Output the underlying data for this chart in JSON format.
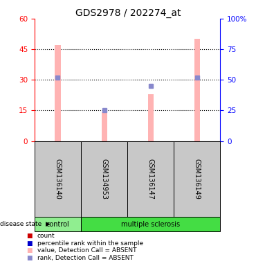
{
  "title": "GDS2978 / 202274_at",
  "samples": [
    "GSM136140",
    "GSM134953",
    "GSM136147",
    "GSM136149"
  ],
  "pink_bar_values": [
    47,
    14,
    23,
    50
  ],
  "blue_rank_values": [
    52,
    25,
    45,
    52
  ],
  "left_ylim": [
    0,
    60
  ],
  "left_yticks": [
    0,
    15,
    30,
    45,
    60
  ],
  "right_ylim": [
    0,
    100
  ],
  "right_yticks": [
    0,
    25,
    50,
    75,
    100
  ],
  "right_yticklabels": [
    "0",
    "25",
    "50",
    "75",
    "100%"
  ],
  "left_ycolor": "#ff0000",
  "right_ycolor": "#0000ff",
  "pink_bar_color": "#ffb3b3",
  "blue_marker_color": "#8888cc",
  "control_color": "#90ee90",
  "ms_color": "#44dd44",
  "gray_box_color": "#c8c8c8",
  "background_color": "#ffffff",
  "title_fontsize": 10,
  "tick_fontsize": 7.5,
  "sample_fontsize": 7,
  "legend_fontsize": 6.5
}
